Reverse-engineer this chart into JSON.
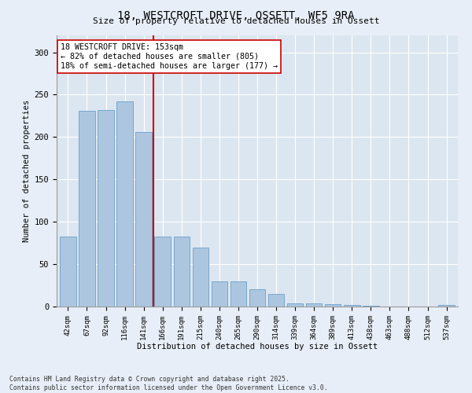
{
  "title": "18, WESTCROFT DRIVE, OSSETT, WF5 9RA",
  "subtitle": "Size of property relative to detached houses in Ossett",
  "xlabel": "Distribution of detached houses by size in Ossett",
  "ylabel": "Number of detached properties",
  "footer1": "Contains HM Land Registry data © Crown copyright and database right 2025.",
  "footer2": "Contains public sector information licensed under the Open Government Licence v3.0.",
  "categories": [
    "42sqm",
    "67sqm",
    "92sqm",
    "116sqm",
    "141sqm",
    "166sqm",
    "191sqm",
    "215sqm",
    "240sqm",
    "265sqm",
    "290sqm",
    "314sqm",
    "339sqm",
    "364sqm",
    "389sqm",
    "413sqm",
    "438sqm",
    "463sqm",
    "488sqm",
    "512sqm",
    "537sqm"
  ],
  "values": [
    83,
    231,
    232,
    242,
    206,
    83,
    83,
    70,
    30,
    30,
    20,
    15,
    4,
    4,
    3,
    2,
    1,
    0,
    0,
    0,
    2
  ],
  "bar_color": "#adc6e0",
  "bar_edge_color": "#6a9fc8",
  "vline_x_idx": 4,
  "vline_color": "#cc0000",
  "annotation_title": "18 WESTCROFT DRIVE: 153sqm",
  "annotation_line1": "← 82% of detached houses are smaller (805)",
  "annotation_line2": "18% of semi-detached houses are larger (177) →",
  "annotation_box_color": "#ffffff",
  "annotation_box_edge": "#cc0000",
  "bg_color": "#e8eef7",
  "plot_bg_color": "#dce6f0",
  "grid_color": "#ffffff",
  "ylim": [
    0,
    320
  ],
  "yticks": [
    0,
    50,
    100,
    150,
    200,
    250,
    300
  ]
}
